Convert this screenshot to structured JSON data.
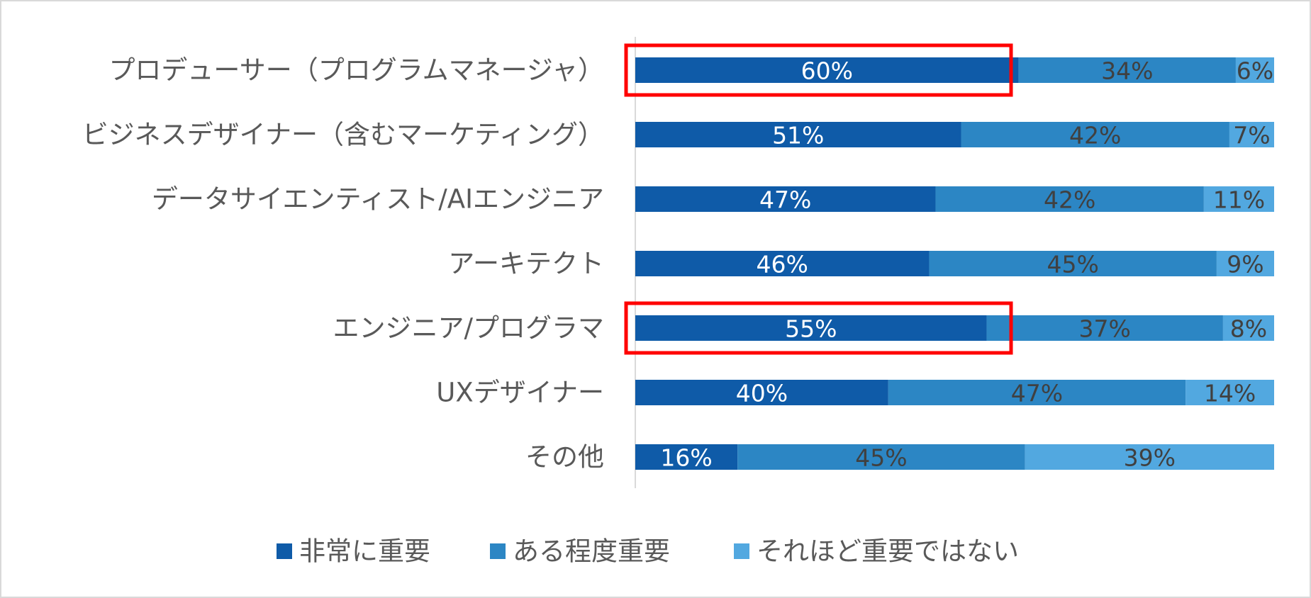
{
  "chart_data": {
    "type": "bar",
    "orientation": "horizontal",
    "stacked": "100%",
    "categories": [
      "プロデューサー（プログラムマネージャ）",
      "ビジネスデザイナー（含むマーケティング）",
      "データサイエンティスト/AIエンジニア",
      "アーキテクト",
      "エンジニア/プログラマ",
      "UXデザイナー",
      "その他"
    ],
    "series": [
      {
        "name": "非常に重要",
        "color": "#0F5BA8",
        "label_color": "#ffffff",
        "values": [
          60,
          51,
          47,
          46,
          55,
          40,
          16
        ]
      },
      {
        "name": "ある程度重要",
        "color": "#2C86C4",
        "label_color": "#404040",
        "values": [
          34,
          42,
          42,
          45,
          37,
          47,
          45
        ]
      },
      {
        "name": "それほど重要ではない",
        "color": "#52A8E0",
        "label_color": "#404040",
        "values": [
          6,
          7,
          11,
          9,
          8,
          14,
          39
        ]
      }
    ],
    "value_suffix": "%",
    "xlim": [
      0,
      100
    ],
    "legend_position": "bottom",
    "grid": false,
    "highlighted_categories": [
      0,
      4
    ],
    "highlight_color": "#FF0000"
  }
}
